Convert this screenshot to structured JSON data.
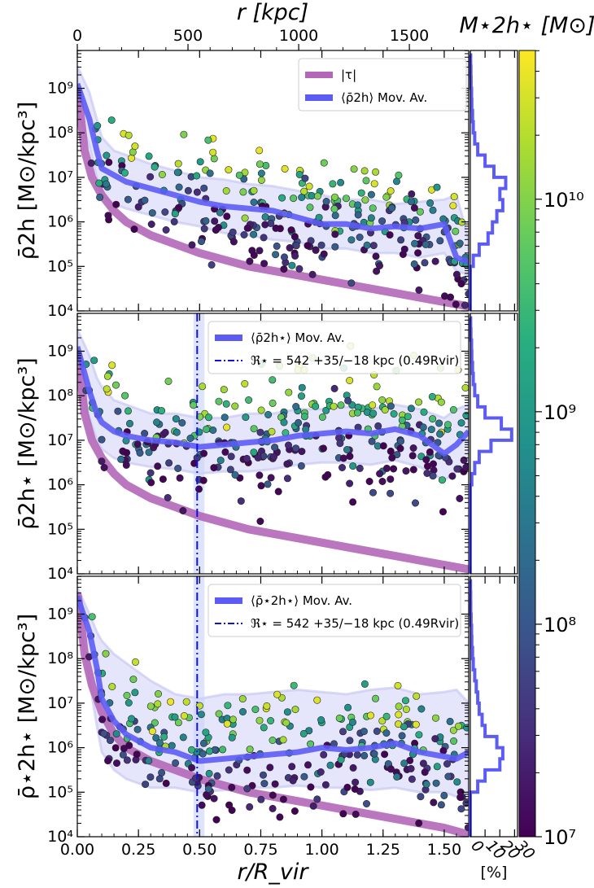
{
  "chart_data": {
    "type": "scatter",
    "top_xaxis": {
      "label": "r [kpc]",
      "ticks": [
        {
          "value": 0,
          "label": "0"
        },
        {
          "value": 500,
          "label": "500"
        },
        {
          "value": 1000,
          "label": "1000"
        },
        {
          "value": 1500,
          "label": "1500"
        }
      ],
      "range": [
        0,
        1768
      ]
    },
    "bottom_xaxis": {
      "label": "r/R_vir",
      "ticks": [
        {
          "value": 0.0,
          "label": "0.00"
        },
        {
          "value": 0.25,
          "label": "0.25"
        },
        {
          "value": 0.5,
          "label": "0.50"
        },
        {
          "value": 0.75,
          "label": "0.75"
        },
        {
          "value": 1.0,
          "label": "1.00"
        },
        {
          "value": 1.25,
          "label": "1.25"
        },
        {
          "value": 1.5,
          "label": "1.50"
        }
      ],
      "range": [
        0,
        1.6
      ]
    },
    "yrange_log": [
      4,
      9.85
    ],
    "ytick_labels": [
      {
        "value": 4,
        "label": "10⁴"
      },
      {
        "value": 5,
        "label": "10⁵"
      },
      {
        "value": 6,
        "label": "10⁶"
      },
      {
        "value": 7,
        "label": "10⁷"
      },
      {
        "value": 8,
        "label": "10⁸"
      },
      {
        "value": 9,
        "label": "10⁹"
      }
    ],
    "panels": [
      {
        "ylabel": "ρ̄2h [M⊙/kpc³]",
        "legend": [
          {
            "label": "|τ|",
            "color": "#b267b7",
            "style": "thick"
          },
          {
            "label": "⟨ρ̄2h⟩ Mov. Av.",
            "color": "#5c5cf5",
            "style": "thick"
          }
        ],
        "tau_curve": {
          "x": [
            0.003,
            0.03,
            0.06,
            0.1,
            0.15,
            0.2,
            0.3,
            0.4,
            0.5,
            0.7,
            0.9,
            1.1,
            1.3,
            1.5,
            1.6
          ],
          "log_y": [
            8.9,
            7.6,
            7.0,
            6.6,
            6.25,
            6.0,
            5.7,
            5.5,
            5.3,
            5.0,
            4.8,
            4.6,
            4.4,
            4.2,
            4.1
          ]
        },
        "moving_average": {
          "x": [
            0.0,
            0.05,
            0.08,
            0.1,
            0.15,
            0.2,
            0.3,
            0.4,
            0.5,
            0.6,
            0.7,
            0.8,
            0.9,
            1.0,
            1.1,
            1.2,
            1.3,
            1.4,
            1.5,
            1.55,
            1.6
          ],
          "log_y": [
            9.1,
            8.3,
            7.6,
            7.2,
            7.05,
            6.9,
            6.75,
            6.6,
            6.45,
            6.35,
            6.3,
            6.25,
            6.1,
            5.95,
            5.95,
            5.85,
            5.9,
            5.85,
            5.95,
            5.2,
            5.1
          ],
          "log_upper": [
            9.5,
            8.9,
            8.3,
            7.9,
            7.6,
            7.5,
            7.3,
            7.15,
            7.0,
            6.95,
            6.85,
            6.8,
            6.7,
            6.6,
            6.5,
            6.5,
            6.4,
            6.45,
            6.5,
            6.6,
            5.6
          ],
          "log_lower": [
            8.5,
            7.7,
            7.0,
            6.6,
            6.4,
            6.3,
            6.15,
            6.0,
            5.9,
            5.75,
            5.7,
            5.6,
            5.55,
            5.4,
            5.4,
            5.3,
            5.3,
            5.2,
            5.3,
            4.9,
            4.8
          ]
        },
        "scatter_params": {
          "seed": 11,
          "n": 300,
          "trend": "falling_then_flat"
        },
        "vline": null
      },
      {
        "ylabel": "ρ̄2h⋆ [M⊙/kpc³]",
        "legend": [
          {
            "label": "⟨ρ̄2h⋆⟩ Mov. Av.",
            "color": "#5c5cf5",
            "style": "thick"
          },
          {
            "label": "ℜ⋆ = 542 +35/−18 kpc (0.49Rvir)",
            "color": "#1010e6",
            "style": "dashdot"
          }
        ],
        "tau_curve": {
          "x": [
            0.003,
            0.03,
            0.06,
            0.1,
            0.15,
            0.2,
            0.3,
            0.4,
            0.5,
            0.7,
            0.9,
            1.1,
            1.3,
            1.5,
            1.6
          ],
          "log_y": [
            8.9,
            7.6,
            7.0,
            6.6,
            6.25,
            6.0,
            5.7,
            5.5,
            5.3,
            5.0,
            4.8,
            4.6,
            4.4,
            4.2,
            4.1
          ]
        },
        "moving_average": {
          "x": [
            0.0,
            0.05,
            0.08,
            0.1,
            0.15,
            0.2,
            0.3,
            0.4,
            0.5,
            0.6,
            0.7,
            0.8,
            0.9,
            1.0,
            1.1,
            1.2,
            1.3,
            1.4,
            1.5,
            1.55,
            1.6
          ],
          "log_y": [
            9.1,
            8.1,
            7.6,
            7.4,
            7.2,
            7.1,
            7.0,
            6.95,
            6.85,
            6.9,
            6.95,
            7.0,
            7.1,
            7.15,
            7.2,
            7.15,
            7.25,
            7.1,
            6.7,
            6.9,
            7.2
          ],
          "log_upper": [
            9.5,
            8.9,
            8.4,
            8.2,
            7.9,
            7.8,
            7.6,
            7.6,
            7.5,
            7.5,
            7.6,
            7.6,
            7.7,
            7.7,
            7.75,
            7.7,
            7.8,
            7.7,
            7.5,
            7.7,
            7.8
          ],
          "log_lower": [
            8.6,
            7.5,
            7.0,
            6.8,
            6.6,
            6.5,
            6.4,
            6.35,
            6.25,
            6.3,
            6.3,
            6.35,
            6.45,
            6.5,
            6.5,
            6.45,
            6.55,
            6.4,
            6.1,
            6.3,
            6.5
          ]
        },
        "scatter_params": {
          "seed": 23,
          "n": 320,
          "trend": "flat_high"
        },
        "vline": {
          "x": 0.49,
          "band": [
            0.475,
            0.52
          ]
        }
      },
      {
        "ylabel": "ρ̄⋆2h⋆ [M⊙/kpc³]",
        "legend": [
          {
            "label": "⟨ρ̄⋆2h⋆⟩ Mov. Av.",
            "color": "#5c5cf5",
            "style": "thick"
          },
          {
            "label": "ℜ⋆ = 542 +35/−18 kpc (0.49Rvir)",
            "color": "#1010e6",
            "style": "dashdot"
          }
        ],
        "tau_curve": {
          "x": [
            0.003,
            0.03,
            0.06,
            0.1,
            0.15,
            0.2,
            0.3,
            0.4,
            0.5,
            0.7,
            0.9,
            1.1,
            1.3,
            1.5,
            1.6
          ],
          "log_y": [
            9.4,
            8.1,
            7.4,
            6.8,
            6.3,
            6.0,
            5.7,
            5.5,
            5.3,
            5.0,
            4.8,
            4.6,
            4.4,
            4.2,
            4.05
          ]
        },
        "moving_average": {
          "x": [
            0.0,
            0.05,
            0.08,
            0.1,
            0.15,
            0.2,
            0.3,
            0.4,
            0.5,
            0.6,
            0.7,
            0.8,
            0.9,
            1.0,
            1.1,
            1.2,
            1.3,
            1.4,
            1.5,
            1.55,
            1.6
          ],
          "log_y": [
            9.4,
            8.6,
            7.8,
            7.1,
            6.6,
            6.3,
            6.0,
            5.9,
            5.7,
            5.75,
            5.8,
            5.85,
            5.9,
            6.0,
            5.95,
            6.0,
            6.1,
            5.9,
            5.8,
            5.75,
            5.9
          ],
          "log_upper": [
            9.6,
            9.0,
            8.6,
            8.4,
            8.1,
            7.9,
            7.5,
            7.2,
            7.1,
            7.2,
            7.2,
            7.25,
            7.3,
            7.25,
            7.2,
            7.3,
            7.35,
            7.2,
            7.25,
            7.3,
            7.0
          ],
          "log_lower": [
            9.0,
            7.5,
            6.5,
            5.9,
            5.5,
            5.3,
            5.1,
            5.1,
            5.0,
            5.05,
            5.1,
            5.1,
            5.15,
            5.1,
            5.1,
            5.05,
            5.1,
            5.0,
            5.0,
            4.9,
            4.8
          ]
        },
        "scatter_params": {
          "seed": 37,
          "n": 300,
          "trend": "falling_low"
        },
        "vline": {
          "x": 0.49,
          "band": [
            0.475,
            0.52
          ]
        }
      }
    ],
    "histogram": {
      "xlabel": "[%]",
      "ticks": [
        {
          "value": 0,
          "label": "0"
        },
        {
          "value": 10,
          "label": "10"
        },
        {
          "value": 20,
          "label": "20"
        },
        {
          "value": 30,
          "label": "30"
        }
      ],
      "xrange": [
        0,
        32
      ],
      "bin_edges_log": [
        4,
        4.25,
        4.5,
        4.75,
        5,
        5.25,
        5.5,
        5.75,
        6,
        6.25,
        6.5,
        6.75,
        7,
        7.25,
        7.5,
        7.75,
        8,
        8.25,
        8.5,
        8.75,
        9,
        9.25,
        9.5,
        9.75
      ],
      "panels": [
        {
          "percent": [
            0,
            0,
            0,
            0,
            2,
            6,
            12,
            15,
            18,
            22,
            20,
            24,
            16,
            10,
            5,
            3,
            2,
            1.5,
            1,
            0.8,
            0.5,
            0.4,
            0.2
          ]
        },
        {
          "percent": [
            0,
            0,
            0,
            0,
            0,
            0,
            0,
            0,
            1,
            3,
            6,
            14,
            28,
            21,
            10,
            5,
            3,
            2,
            1.5,
            1,
            0.8,
            0.4,
            0.2
          ]
        },
        {
          "percent": [
            0,
            0,
            0,
            0,
            5,
            10,
            20,
            22,
            18,
            10,
            8,
            6,
            5,
            4,
            3,
            2,
            1.5,
            1,
            0.8,
            0.5,
            0.3,
            0.2,
            0.1
          ]
        }
      ]
    },
    "colorbar": {
      "label": "M⋆2h⋆ [M⊙]",
      "range_log": [
        7,
        10.7
      ],
      "ticks": [
        {
          "value": 7,
          "label": "10⁷"
        },
        {
          "value": 8,
          "label": "10⁸"
        },
        {
          "value": 9,
          "label": "10⁹"
        },
        {
          "value": 10,
          "label": "10¹⁰"
        }
      ],
      "colormap": "viridis"
    }
  },
  "colors": {
    "tau": "#b267b7",
    "moving_average": "#5c5cf5",
    "band": "#dcdcfa",
    "vline": "#1010e6"
  }
}
